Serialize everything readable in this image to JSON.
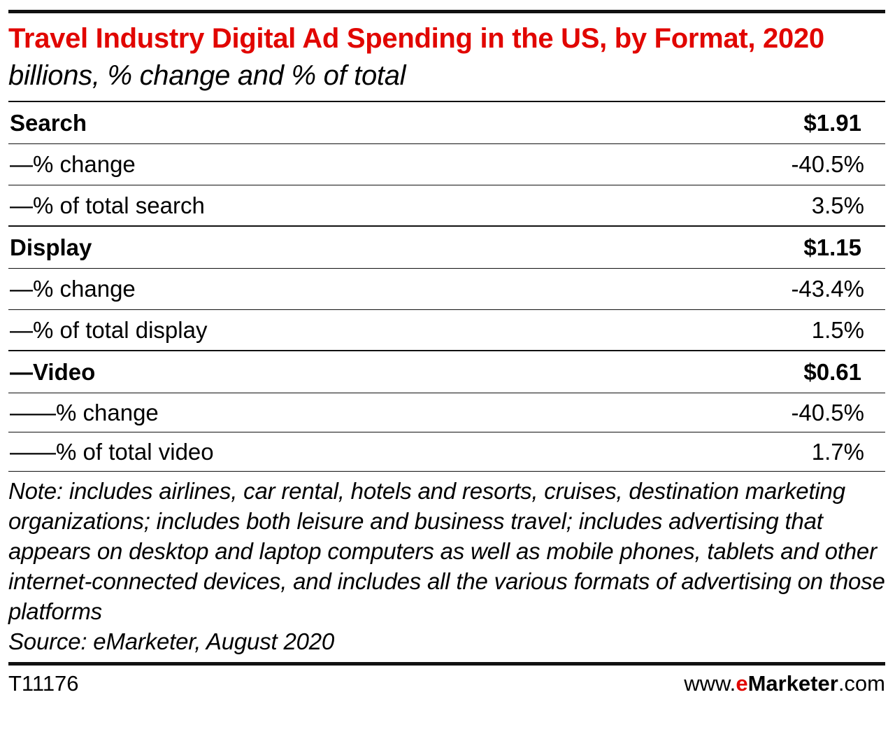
{
  "chart_data": {
    "type": "table",
    "title": "Travel Industry Digital Ad Spending in the US, by Format, 2020",
    "subtitle": "billions, % change and % of total",
    "rows": [
      {
        "label": "Search",
        "value": "$1.91",
        "kind": "head"
      },
      {
        "label": "—% change",
        "value": "-40.5%",
        "kind": "sub"
      },
      {
        "label": "—% of total search",
        "value": "3.5%",
        "kind": "sub-end"
      },
      {
        "label": "Display",
        "value": "$1.15",
        "kind": "head"
      },
      {
        "label": "—% change",
        "value": "-43.4%",
        "kind": "sub"
      },
      {
        "label": "—% of total display",
        "value": "1.5%",
        "kind": "sub-end"
      },
      {
        "label": "—Video",
        "value": "$0.61",
        "kind": "head"
      },
      {
        "label": "——% change",
        "value": "-40.5%",
        "kind": "sub-short"
      },
      {
        "label": "——% of total video",
        "value": "1.7%",
        "kind": "sub-short"
      }
    ],
    "note": "Note: includes airlines, car rental, hotels and resorts, cruises, destination marketing organizations; includes both leisure and business travel; includes advertising that appears on desktop and laptop computers as well as mobile phones, tablets and other internet-connected devices, and includes all the various formats of advertising on those platforms",
    "source": "Source: eMarketer, August 2020"
  },
  "footer": {
    "id": "T11176",
    "brand_prefix": "www.",
    "brand_e": "e",
    "brand_name": "Marketer",
    "brand_suffix": ".com"
  },
  "colors": {
    "title": "#e10600",
    "rules": "#111111",
    "background": "#ffffff"
  }
}
